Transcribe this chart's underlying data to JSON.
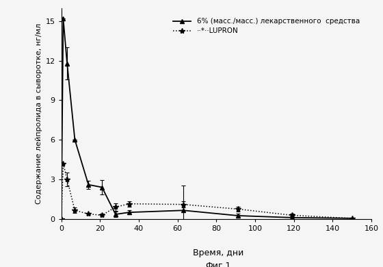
{
  "xlabel": "Время, дни",
  "ylabel": "Содержание лейпролида в сыворотке, нг/мл",
  "fig_label": "Фиг.1",
  "xlim": [
    0,
    160
  ],
  "ylim": [
    0,
    16
  ],
  "yticks": [
    0,
    3,
    6,
    9,
    12,
    15
  ],
  "xticks": [
    0,
    20,
    40,
    60,
    80,
    100,
    120,
    140,
    160
  ],
  "series1_x": [
    0,
    1,
    3,
    7,
    14,
    21,
    28,
    35,
    63,
    91,
    119,
    150
  ],
  "series1_y": [
    0,
    15.2,
    11.8,
    6.0,
    2.6,
    2.4,
    0.35,
    0.5,
    0.65,
    0.25,
    0.1,
    0.05
  ],
  "series1_yerr": [
    0,
    0,
    1.2,
    0,
    0.3,
    0.55,
    0.2,
    0.15,
    1.9,
    0.18,
    0.08,
    0.02
  ],
  "series2_x": [
    0,
    1,
    3,
    7,
    14,
    21,
    28,
    35,
    63,
    91,
    119,
    150
  ],
  "series2_y": [
    0,
    4.2,
    3.0,
    0.65,
    0.38,
    0.28,
    0.9,
    1.15,
    1.1,
    0.75,
    0.28,
    0.04
  ],
  "series2_yerr": [
    0,
    0,
    0.5,
    0.2,
    0.1,
    0.1,
    0.3,
    0.2,
    0.22,
    0.18,
    0.1,
    0.02
  ],
  "background_color": "#f5f5f5",
  "legend_label1": "6% (масс./масс.) лекарственного  средства",
  "legend_label2": "··*··LUPRON"
}
